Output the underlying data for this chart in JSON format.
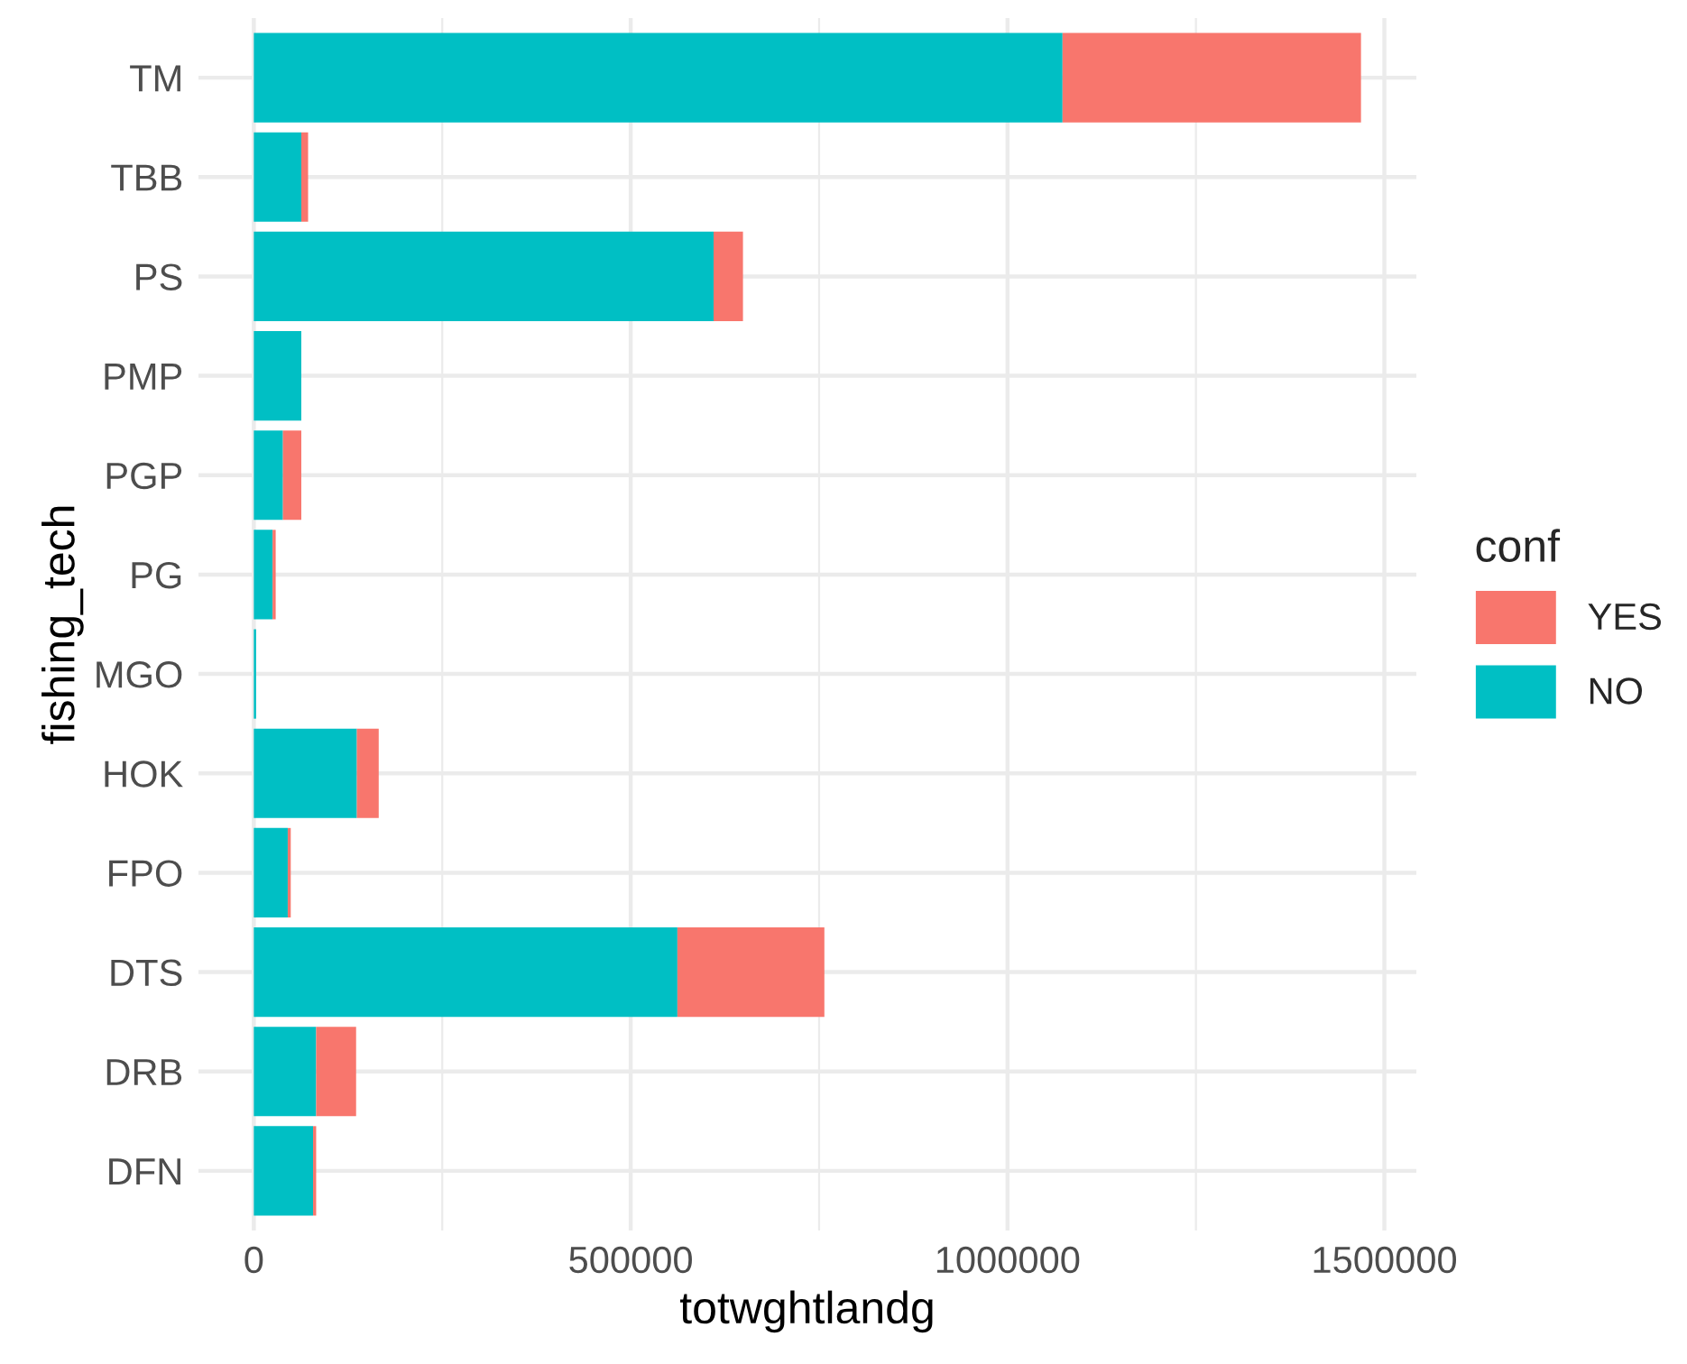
{
  "chart_data": {
    "type": "bar",
    "orientation": "horizontal",
    "stacked": true,
    "xlabel": "totwghtlandg",
    "ylabel": "fishing_tech",
    "legend_title": "conf",
    "categories": [
      "TM",
      "TBB",
      "PS",
      "PMP",
      "PGP",
      "PG",
      "MGO",
      "HOK",
      "FPO",
      "DTS",
      "DRB",
      "DFN"
    ],
    "series": [
      {
        "name": "NO",
        "color": "#00bfc4",
        "values": [
          1073000,
          63000,
          610000,
          63000,
          38600,
          24900,
          3000,
          136700,
          45000,
          562000,
          82700,
          78600
        ]
      },
      {
        "name": "YES",
        "color": "#f8766d",
        "values": [
          396000,
          9000,
          39000,
          0,
          24400,
          4100,
          0,
          29000,
          4000,
          195000,
          53000,
          4100
        ]
      }
    ],
    "xlim": [
      -73450,
      1542450
    ],
    "xticks": [
      0,
      500000,
      1000000,
      1500000
    ],
    "grid": true,
    "legend": "right"
  }
}
